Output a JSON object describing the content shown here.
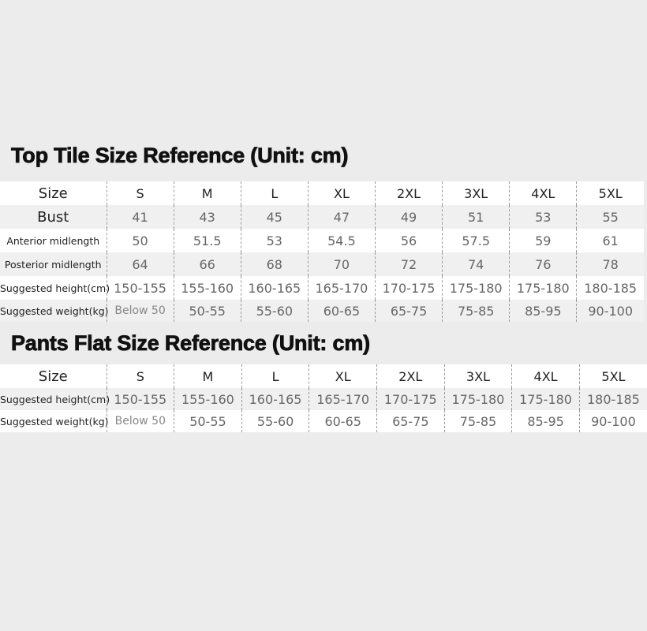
{
  "top": {
    "title": "Top Tile Size Reference (Unit: cm)",
    "sizes": [
      "S",
      "M",
      "L",
      "XL",
      "2XL",
      "3XL",
      "4XL",
      "5XL"
    ],
    "size_label": "Size",
    "rows": [
      {
        "label": "Bust",
        "values": [
          "41",
          "43",
          "45",
          "47",
          "49",
          "51",
          "53",
          "55"
        ]
      },
      {
        "label": "Anterior midlength",
        "values": [
          "50",
          "51.5",
          "53",
          "54.5",
          "56",
          "57.5",
          "59",
          "61"
        ]
      },
      {
        "label": "Posterior midlength",
        "values": [
          "64",
          "66",
          "68",
          "70",
          "72",
          "74",
          "76",
          "78"
        ]
      },
      {
        "label": "Suggested height(cm)",
        "values": [
          "150-155",
          "155-160",
          "160-165",
          "165-170",
          "170-175",
          "175-180",
          "175-180",
          "180-185"
        ]
      },
      {
        "label": "Suggested weight(kg)",
        "values": [
          "Below 50",
          "50-55",
          "55-60",
          "60-65",
          "65-75",
          "75-85",
          "85-95",
          "90-100"
        ]
      }
    ]
  },
  "pants": {
    "title": "Pants Flat Size Reference (Unit: cm)",
    "sizes": [
      "S",
      "M",
      "L",
      "XL",
      "2XL",
      "3XL",
      "4XL",
      "5XL"
    ],
    "size_label": "Size",
    "rows": [
      {
        "label": "Suggested height(cm)",
        "values": [
          "150-155",
          "155-160",
          "160-165",
          "165-170",
          "170-175",
          "175-180",
          "175-180",
          "180-185"
        ]
      },
      {
        "label": "Suggested weight(kg)",
        "values": [
          "Below 50",
          "50-55",
          "55-60",
          "60-65",
          "65-75",
          "75-85",
          "85-95",
          "90-100"
        ]
      }
    ]
  }
}
